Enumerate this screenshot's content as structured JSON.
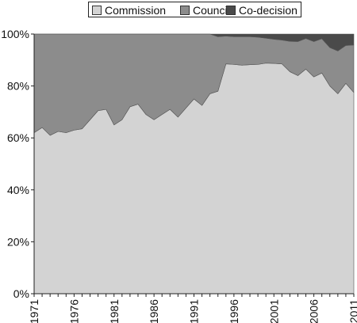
{
  "chart_data": {
    "type": "area",
    "stacked": true,
    "x": [
      1971,
      1972,
      1973,
      1974,
      1975,
      1976,
      1977,
      1978,
      1979,
      1980,
      1981,
      1982,
      1983,
      1984,
      1985,
      1986,
      1987,
      1988,
      1989,
      1990,
      1991,
      1992,
      1993,
      1994,
      1995,
      1996,
      1997,
      1998,
      1999,
      2000,
      2001,
      2002,
      2003,
      2004,
      2005,
      2006,
      2007,
      2008,
      2009,
      2010,
      2011
    ],
    "x_tick_labels": [
      "1971",
      "1976",
      "1981",
      "1986",
      "1991",
      "1996",
      "2001",
      "2006",
      "2011"
    ],
    "series": [
      {
        "name": "Commission",
        "color": "#d3d3d3",
        "values": [
          62,
          64,
          61,
          62.5,
          62,
          63,
          63.5,
          67,
          70.5,
          71,
          65,
          67,
          72,
          73,
          69,
          67,
          69,
          71,
          68,
          71.5,
          75,
          72.5,
          77,
          78,
          88.5,
          88.3,
          88,
          88.2,
          88.3,
          88.8,
          88.7,
          88.5,
          85.5,
          84,
          86.5,
          83.5,
          85,
          80,
          77,
          81,
          77.5
        ]
      },
      {
        "name": "Council",
        "color": "#8c8c8c",
        "values": [
          38,
          36,
          39,
          37.5,
          38,
          37,
          36.5,
          33,
          29.5,
          29,
          35,
          33,
          28,
          27,
          31,
          33,
          31,
          29,
          32,
          28.5,
          25,
          27.5,
          23,
          21,
          10.7,
          10.7,
          11,
          10.8,
          10.5,
          9.6,
          9.3,
          9.2,
          11.7,
          13.1,
          11.8,
          13.6,
          13.2,
          14.8,
          16.5,
          14.6,
          18.3
        ]
      },
      {
        "name": "Co-decision",
        "color": "#4a4a4a",
        "values": [
          0,
          0,
          0,
          0,
          0,
          0,
          0,
          0,
          0,
          0,
          0,
          0,
          0,
          0,
          0,
          0,
          0,
          0,
          0,
          0,
          0,
          0,
          0,
          1,
          0.8,
          1,
          1,
          1,
          1.2,
          1.6,
          2,
          2.3,
          2.8,
          2.9,
          1.7,
          2.9,
          1.8,
          5.2,
          6.5,
          4.4,
          4.2
        ]
      }
    ],
    "y_ticks": [
      "0%",
      "20%",
      "40%",
      "60%",
      "80%",
      "100%"
    ],
    "ylim": [
      0,
      100
    ],
    "grid": false,
    "legend_position": "top"
  }
}
